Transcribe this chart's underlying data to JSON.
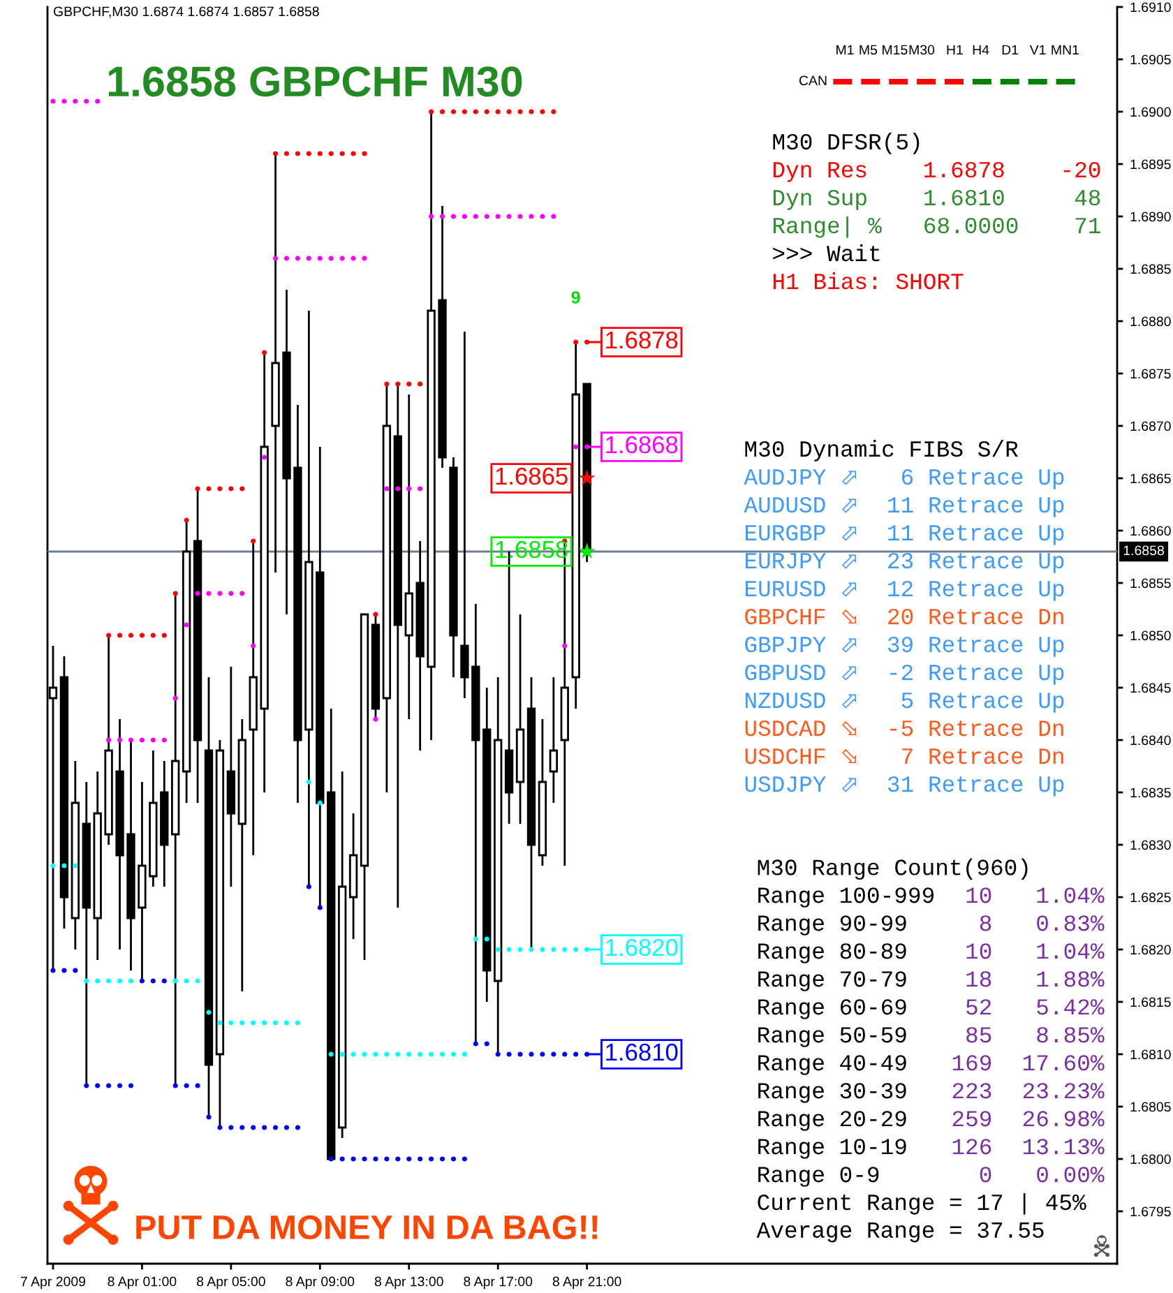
{
  "chart_data": {
    "type": "candlestick",
    "title": "GBPCHF,M30 1.6874 1.6874 1.6857 1.6858",
    "subtitle": "1.6858 GBPCHF M30",
    "x": [
      "2009-04-07T21:00",
      "2009-04-07T21:30",
      "2009-04-07T22:00",
      "2009-04-07T22:30",
      "2009-04-07T23:00",
      "2009-04-07T23:30",
      "2009-04-08T00:00",
      "2009-04-08T00:30",
      "2009-04-08T01:00",
      "2009-04-08T01:30",
      "2009-04-08T02:00",
      "2009-04-08T02:30",
      "2009-04-08T03:00",
      "2009-04-08T03:30",
      "2009-04-08T04:00",
      "2009-04-08T04:30",
      "2009-04-08T05:00",
      "2009-04-08T05:30",
      "2009-04-08T06:00",
      "2009-04-08T06:30",
      "2009-04-08T07:00",
      "2009-04-08T07:30",
      "2009-04-08T08:00",
      "2009-04-08T08:30",
      "2009-04-08T09:00",
      "2009-04-08T09:30",
      "2009-04-08T10:00",
      "2009-04-08T10:30",
      "2009-04-08T11:00",
      "2009-04-08T11:30",
      "2009-04-08T12:00",
      "2009-04-08T12:30",
      "2009-04-08T13:00",
      "2009-04-08T13:30",
      "2009-04-08T14:00",
      "2009-04-08T14:30",
      "2009-04-08T15:00",
      "2009-04-08T15:30",
      "2009-04-08T16:00",
      "2009-04-08T16:30",
      "2009-04-08T17:00",
      "2009-04-08T17:30",
      "2009-04-08T18:00",
      "2009-04-08T18:30",
      "2009-04-08T19:00",
      "2009-04-08T19:30",
      "2009-04-08T20:00",
      "2009-04-08T20:30",
      "2009-04-08T21:00"
    ],
    "ohlc": [
      [
        1.6844,
        1.6849,
        1.6818,
        1.6845
      ],
      [
        1.6846,
        1.6848,
        1.6822,
        1.6825
      ],
      [
        1.6823,
        1.6838,
        1.682,
        1.6834
      ],
      [
        1.6832,
        1.6836,
        1.6807,
        1.6824
      ],
      [
        1.6823,
        1.6837,
        1.6819,
        1.6833
      ],
      [
        1.6831,
        1.685,
        1.683,
        1.6839
      ],
      [
        1.6837,
        1.6842,
        1.682,
        1.6829
      ],
      [
        1.6831,
        1.684,
        1.6818,
        1.6823
      ],
      [
        1.6824,
        1.6836,
        1.6817,
        1.6828
      ],
      [
        1.6827,
        1.6839,
        1.6826,
        1.6834
      ],
      [
        1.6835,
        1.6838,
        1.6826,
        1.683
      ],
      [
        1.6831,
        1.6854,
        1.6807,
        1.6838
      ],
      [
        1.6837,
        1.6861,
        1.6834,
        1.6858
      ],
      [
        1.6859,
        1.6864,
        1.6834,
        1.684
      ],
      [
        1.6839,
        1.6846,
        1.6804,
        1.6809
      ],
      [
        1.681,
        1.684,
        1.6803,
        1.6839
      ],
      [
        1.6837,
        1.6847,
        1.6826,
        1.6833
      ],
      [
        1.6832,
        1.6842,
        1.6816,
        1.684
      ],
      [
        1.6841,
        1.6859,
        1.6829,
        1.6846
      ],
      [
        1.6843,
        1.6877,
        1.6835,
        1.6868
      ],
      [
        1.687,
        1.6896,
        1.6856,
        1.6876
      ],
      [
        1.6877,
        1.6883,
        1.6852,
        1.6865
      ],
      [
        1.6866,
        1.6872,
        1.6834,
        1.684
      ],
      [
        1.6841,
        1.6881,
        1.6826,
        1.6857
      ],
      [
        1.6856,
        1.6868,
        1.6824,
        1.6834
      ],
      [
        1.6835,
        1.6843,
        1.68,
        1.68
      ],
      [
        1.6803,
        1.6837,
        1.6802,
        1.6826
      ],
      [
        1.6825,
        1.6833,
        1.6821,
        1.6829
      ],
      [
        1.6828,
        1.6852,
        1.6819,
        1.6852
      ],
      [
        1.6851,
        1.6852,
        1.6842,
        1.6843
      ],
      [
        1.6844,
        1.6874,
        1.6835,
        1.687
      ],
      [
        1.6869,
        1.6874,
        1.6824,
        1.6851
      ],
      [
        1.685,
        1.6873,
        1.6842,
        1.6854
      ],
      [
        1.6855,
        1.6859,
        1.6839,
        1.6848
      ],
      [
        1.6847,
        1.69,
        1.684,
        1.6881
      ],
      [
        1.6882,
        1.6891,
        1.6866,
        1.6867
      ],
      [
        1.6866,
        1.6867,
        1.6846,
        1.685
      ],
      [
        1.6849,
        1.6879,
        1.6844,
        1.6846
      ],
      [
        1.6847,
        1.6853,
        1.6811,
        1.684
      ],
      [
        1.6841,
        1.6845,
        1.6815,
        1.6818
      ],
      [
        1.6817,
        1.6846,
        1.681,
        1.684
      ],
      [
        1.6839,
        1.6858,
        1.6832,
        1.6835
      ],
      [
        1.6836,
        1.6852,
        1.6832,
        1.6841
      ],
      [
        1.6843,
        1.6846,
        1.682,
        1.683
      ],
      [
        1.6829,
        1.6842,
        1.6828,
        1.6836
      ],
      [
        1.6837,
        1.6846,
        1.6834,
        1.6839
      ],
      [
        1.684,
        1.6859,
        1.6828,
        1.6845
      ],
      [
        1.6846,
        1.6878,
        1.6843,
        1.6873
      ],
      [
        1.6874,
        1.6874,
        1.6857,
        1.6858
      ]
    ],
    "series": [
      {
        "type": "scatter",
        "marker": "circle",
        "color": "#ff0000",
        "values": [
          null,
          null,
          null,
          null,
          null,
          1.685,
          1.685,
          1.685,
          1.685,
          1.685,
          1.685,
          1.6854,
          1.6861,
          1.6864,
          1.6864,
          1.6864,
          1.6864,
          1.6864,
          1.6859,
          1.6877,
          1.6896,
          1.6896,
          1.6896,
          1.6896,
          1.6896,
          1.6896,
          1.6896,
          1.6896,
          1.6896,
          1.6852,
          1.6874,
          1.6874,
          1.6874,
          1.6874,
          1.69,
          1.69,
          1.69,
          1.69,
          1.69,
          1.69,
          1.69,
          1.69,
          1.69,
          1.69,
          1.69,
          1.69,
          1.6859,
          1.6878,
          1.6878
        ],
        "value_labels": [
          null,
          null,
          null,
          null,
          null,
          null,
          null,
          null,
          null,
          null,
          null,
          null,
          null,
          null,
          null,
          null,
          null,
          null,
          null,
          null,
          null,
          null,
          null,
          null,
          null,
          null,
          null,
          null,
          null,
          null,
          null,
          null,
          null,
          null,
          null,
          null,
          null,
          null,
          null,
          null,
          null,
          null,
          null,
          null,
          null,
          null,
          null,
          null,
          "1.6878"
        ]
      },
      {
        "type": "scatter",
        "marker": "circle",
        "color": "#ff00ff",
        "values": [
          1.6901,
          1.6901,
          1.6901,
          1.6901,
          1.6901,
          1.684,
          1.684,
          1.684,
          1.684,
          1.684,
          1.684,
          1.6844,
          1.6851,
          1.6854,
          1.6854,
          1.6854,
          1.6854,
          1.6854,
          1.6849,
          1.6867,
          1.6886,
          1.6886,
          1.6886,
          1.6886,
          1.6886,
          1.6886,
          1.6886,
          1.6886,
          1.6886,
          1.6842,
          1.6864,
          1.6864,
          1.6864,
          1.6864,
          1.689,
          1.689,
          1.689,
          1.689,
          1.689,
          1.689,
          1.689,
          1.689,
          1.689,
          1.689,
          1.689,
          1.689,
          1.6849,
          1.6868,
          1.6868
        ],
        "value_labels": [
          null,
          null,
          null,
          null,
          null,
          null,
          null,
          null,
          null,
          null,
          null,
          null,
          null,
          null,
          null,
          null,
          null,
          null,
          null,
          null,
          null,
          null,
          null,
          null,
          null,
          null,
          null,
          null,
          null,
          null,
          null,
          null,
          null,
          null,
          null,
          null,
          null,
          null,
          null,
          null,
          null,
          null,
          null,
          null,
          null,
          null,
          null,
          null,
          "1.6868"
        ]
      },
      {
        "type": "scatter",
        "marker": "circle",
        "color": "#00ffff",
        "values": [
          1.6828,
          1.6828,
          1.6828,
          1.6817,
          1.6817,
          1.6817,
          1.6817,
          1.6817,
          null,
          null,
          null,
          1.6817,
          1.6817,
          1.6817,
          1.6814,
          1.6813,
          1.6813,
          1.6813,
          1.6813,
          1.6813,
          1.6813,
          1.6813,
          1.6813,
          1.6836,
          1.6834,
          1.681,
          1.681,
          1.681,
          1.681,
          1.681,
          1.681,
          1.681,
          1.681,
          1.681,
          1.681,
          1.681,
          1.681,
          1.681,
          1.6821,
          1.6821,
          1.682,
          1.682,
          1.682,
          1.682,
          1.682,
          1.682,
          1.682,
          1.682,
          1.682
        ],
        "value_labels": [
          null,
          null,
          null,
          null,
          null,
          null,
          null,
          null,
          null,
          null,
          null,
          null,
          null,
          null,
          null,
          null,
          null,
          null,
          null,
          null,
          null,
          null,
          null,
          null,
          null,
          null,
          null,
          null,
          null,
          null,
          null,
          null,
          null,
          null,
          null,
          null,
          null,
          null,
          null,
          null,
          null,
          null,
          null,
          null,
          null,
          null,
          null,
          null,
          "1.6820"
        ]
      },
      {
        "type": "scatter",
        "marker": "circle",
        "color": "#0000ff",
        "values": [
          1.6818,
          1.6818,
          1.6818,
          1.6807,
          1.6807,
          1.6807,
          1.6807,
          1.6807,
          1.6817,
          1.6817,
          1.6817,
          1.6807,
          1.6807,
          1.6807,
          1.6804,
          1.6803,
          1.6803,
          1.6803,
          1.6803,
          1.6803,
          1.6803,
          1.6803,
          1.6803,
          1.6826,
          1.6824,
          1.68,
          1.68,
          1.68,
          1.68,
          1.68,
          1.68,
          1.68,
          1.68,
          1.68,
          1.68,
          1.68,
          1.68,
          1.68,
          1.6811,
          1.6811,
          1.681,
          1.681,
          1.681,
          1.681,
          1.681,
          1.681,
          1.681,
          1.681,
          1.681
        ],
        "value_labels": [
          null,
          null,
          null,
          null,
          null,
          null,
          null,
          null,
          null,
          null,
          null,
          null,
          null,
          null,
          null,
          null,
          null,
          null,
          null,
          null,
          null,
          null,
          null,
          null,
          null,
          null,
          null,
          null,
          null,
          null,
          null,
          null,
          null,
          null,
          null,
          null,
          null,
          null,
          null,
          null,
          null,
          null,
          null,
          null,
          null,
          null,
          null,
          null,
          "1.6810"
        ]
      },
      {
        "type": "scatter",
        "marker": "star",
        "color": "#ff0000",
        "x": [
          "2009-04-08T21:00"
        ],
        "values": [
          1.6865
        ],
        "value_labels": [
          "1.6865"
        ]
      },
      {
        "type": "scatter",
        "marker": "star",
        "color": "#00ee00",
        "x": [
          "2009-04-08T21:00"
        ],
        "values": [
          1.6858
        ],
        "value_labels": [
          "1.6858"
        ]
      }
    ],
    "xlim": [
      "2009-04-07T20:45",
      "2009-04-09T20:50"
    ],
    "xticks": [
      {
        "value": "2009-04-07T21:00",
        "label": "7 Apr 2009"
      },
      {
        "value": "2009-04-08T01:00",
        "label": "8 Apr 01:00"
      },
      {
        "value": "2009-04-08T05:00",
        "label": "8 Apr 05:00"
      },
      {
        "value": "2009-04-08T09:00",
        "label": "8 Apr 09:00"
      },
      {
        "value": "2009-04-08T13:00",
        "label": "8 Apr 13:00"
      },
      {
        "value": "2009-04-08T17:00",
        "label": "8 Apr 17:00"
      },
      {
        "value": "2009-04-08T21:00",
        "label": "8 Apr 21:00"
      }
    ],
    "ylim": [
      1.679,
      1.691
    ],
    "yticks": [
      1.6795,
      {
        "value": 1.68,
        "label": "1.6800"
      },
      1.6805,
      {
        "value": 1.681,
        "label": "1.6810"
      },
      1.6815,
      {
        "value": 1.682,
        "label": "1.6820"
      },
      1.6825,
      {
        "value": 1.683,
        "label": "1.6830"
      },
      1.6835,
      {
        "value": 1.684,
        "label": "1.6840"
      },
      1.6845,
      {
        "value": 1.685,
        "label": "1.6850"
      },
      1.6855,
      {
        "value": 1.686,
        "label": "1.6860"
      },
      1.6865,
      {
        "value": 1.687,
        "label": "1.6870"
      },
      1.6875,
      {
        "value": 1.688,
        "label": "1.6880"
      },
      1.6885,
      {
        "value": 1.689,
        "label": "1.6890"
      },
      1.6895,
      {
        "value": 1.69,
        "label": "1.6900"
      },
      1.6905,
      {
        "value": 1.691,
        "label": "1.6910"
      }
    ],
    "ref_lines": [
      {
        "axis": "y",
        "value": 1.6858,
        "label": "1.6858",
        "color": "#6e8090"
      }
    ],
    "annotations": [
      "M1",
      "M5",
      "M15",
      "M30",
      "H1",
      "H4",
      "D1",
      "V1",
      "MN1",
      "CAN",
      "M30 DFSR(5)",
      "Dyn Res    1.6878    -20",
      "Dyn Sup    1.6810     48",
      "Range| %   68.0000    71",
      ">>> Wait",
      "H1 Bias: SHORT",
      "M30 Dynamic FIBS S/R",
      "AUDJPY ⬀   6 Retrace Up",
      "AUDUSD ⬀  11 Retrace Up",
      "EURGBP ⬀  11 Retrace Up",
      "EURJPY ⬀  23 Retrace Up",
      "EURUSD ⬀  12 Retrace Up",
      "GBPCHF ⬂  20 Retrace Dn",
      "GBPJPY ⬀  39 Retrace Up",
      "GBPUSD ⬀  -2 Retrace Up",
      "NZDUSD ⬀   5 Retrace Up",
      "USDCAD ⬂  -5 Retrace Dn",
      "USDCHF ⬂   7 Retrace Dn",
      "USDJPY ⬀  31 Retrace Up",
      "M30 Range Count(960)",
      "Range 100-999",
      "10",
      "1.04%",
      "Range 90-99",
      "8",
      "0.83%",
      "Range 80-89",
      "10",
      "1.04%",
      "Range 70-79",
      "18",
      "1.88%",
      "Range 60-69",
      "52",
      "5.42%",
      "Range 50-59",
      "85",
      "8.85%",
      "Range 40-49",
      "169",
      "17.60%",
      "Range 30-39",
      "223",
      "23.23%",
      "Range 20-29",
      "259",
      "26.98%",
      "Range 10-19",
      "126",
      "13.13%",
      "Range 0-9",
      "0",
      "0.00%",
      "Current Range = 17 | 45%",
      "Average Range = 37.55",
      "PUT DA MONEY IN DA BAG!!",
      "9"
    ]
  }
}
